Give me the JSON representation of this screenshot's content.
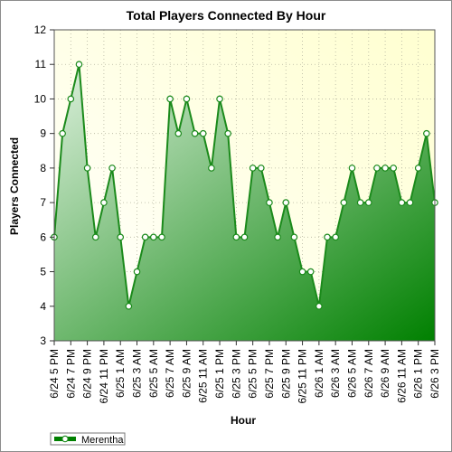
{
  "chart_data": {
    "type": "area",
    "title": "Total Players Connected By Hour",
    "xlabel": "Hour",
    "ylabel": "Players Connected",
    "ylim": [
      3,
      12
    ],
    "yticks": [
      3,
      4,
      5,
      6,
      7,
      8,
      9,
      10,
      11,
      12
    ],
    "grid": true,
    "legend_position": "bottom-left",
    "x_tick_labels": [
      "6/24 5 PM",
      "6/24 7 PM",
      "6/24 9 PM",
      "6/24 11 PM",
      "6/25 1 AM",
      "6/25 3 AM",
      "6/25 5 AM",
      "6/25 7 AM",
      "6/25 9 AM",
      "6/25 11 AM",
      "6/25 1 PM",
      "6/25 3 PM",
      "6/25 5 PM",
      "6/25 7 PM",
      "6/25 9 PM",
      "6/25 11 PM",
      "6/26 1 AM",
      "6/26 3 AM",
      "6/26 5 AM",
      "6/26 7 AM",
      "6/26 9 AM",
      "6/26 11 AM",
      "6/26 1 PM",
      "6/26 3 PM"
    ],
    "series": [
      {
        "name": "Merentha",
        "color": "#1b8a1b",
        "values": [
          6,
          9,
          10,
          11,
          8,
          6,
          7,
          8,
          6,
          4,
          5,
          6,
          6,
          6,
          10,
          9,
          10,
          9,
          9,
          8,
          10,
          9,
          6,
          6,
          8,
          8,
          7,
          6,
          7,
          6,
          5,
          5,
          4,
          6,
          6,
          7,
          8,
          7,
          7,
          8,
          8,
          8,
          7,
          7,
          8,
          9,
          7
        ]
      }
    ],
    "colors": {
      "plot_bg_top": "#ffffd0",
      "plot_bg_bottom": "#ffffff",
      "area_light": "#ddf0dd",
      "area_dark": "#008000",
      "line": "#1b8a1b",
      "grid": "#b5b5a0"
    }
  }
}
